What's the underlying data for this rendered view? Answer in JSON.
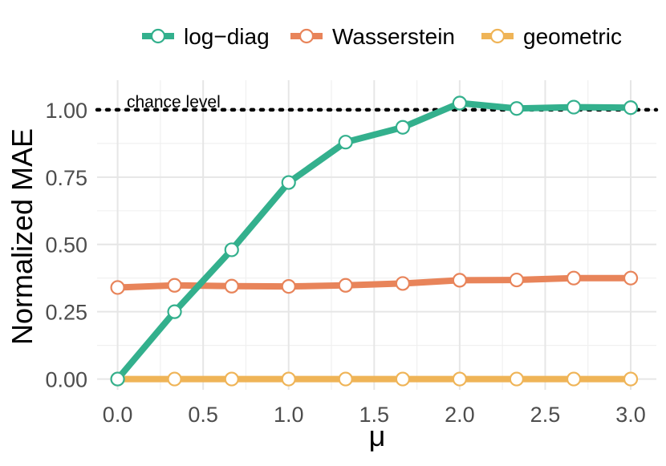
{
  "chart_data": {
    "type": "line",
    "xlabel": "μ",
    "ylabel": "Normalized MAE",
    "xlim": [
      -0.12,
      3.15
    ],
    "ylim": [
      -0.04,
      1.11
    ],
    "x_ticks": [
      0.0,
      0.5,
      1.0,
      1.5,
      2.0,
      2.5,
      3.0
    ],
    "x_tick_labels": [
      "0.0",
      "0.5",
      "1.0",
      "1.5",
      "2.0",
      "2.5",
      "3.0"
    ],
    "y_ticks": [
      0.0,
      0.25,
      0.5,
      0.75,
      1.0
    ],
    "y_tick_labels": [
      "0.00",
      "0.25",
      "0.50",
      "0.75",
      "1.00"
    ],
    "grid": true,
    "legend_position": "top",
    "x": [
      0.0,
      0.333,
      0.667,
      1.0,
      1.333,
      1.667,
      2.0,
      2.333,
      2.667,
      3.0
    ],
    "series": [
      {
        "name": "log−diag",
        "color": "#33b08d",
        "values": [
          0.0,
          0.25,
          0.48,
          0.73,
          0.88,
          0.935,
          1.025,
          1.005,
          1.01,
          1.008
        ]
      },
      {
        "name": "Wasserstein",
        "color": "#e8845a",
        "values": [
          0.34,
          0.348,
          0.345,
          0.344,
          0.348,
          0.355,
          0.367,
          0.368,
          0.375,
          0.375
        ]
      },
      {
        "name": "geometric",
        "color": "#efb457",
        "values": [
          0.0,
          0.0,
          0.0,
          0.0,
          0.0,
          0.0,
          0.0,
          0.0,
          0.0,
          0.0
        ]
      }
    ],
    "reference_line": {
      "y": 1.0,
      "label": "chance level",
      "style": "dotted",
      "color": "#000000"
    }
  }
}
